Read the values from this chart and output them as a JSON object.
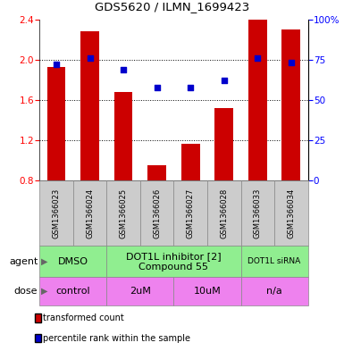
{
  "title": "GDS5620 / ILMN_1699423",
  "samples": [
    "GSM1366023",
    "GSM1366024",
    "GSM1366025",
    "GSM1366026",
    "GSM1366027",
    "GSM1366028",
    "GSM1366033",
    "GSM1366034"
  ],
  "bar_values": [
    1.93,
    2.28,
    1.68,
    0.95,
    1.17,
    1.52,
    2.4,
    2.3
  ],
  "dot_values": [
    72,
    76,
    69,
    58,
    58,
    62,
    76,
    73
  ],
  "ylim_left": [
    0.8,
    2.4
  ],
  "ylim_right": [
    0,
    100
  ],
  "yticks_left": [
    0.8,
    1.2,
    1.6,
    2.0,
    2.4
  ],
  "yticks_right": [
    0,
    25,
    50,
    75,
    100
  ],
  "bar_color": "#cc0000",
  "dot_color": "#0000cc",
  "agent_groups": [
    {
      "label": "DMSO",
      "start": 0,
      "end": 2,
      "color": "#90ee90",
      "fontsize": 8
    },
    {
      "label": "DOT1L inhibitor [2]\nCompound 55",
      "start": 2,
      "end": 6,
      "color": "#90ee90",
      "fontsize": 8
    },
    {
      "label": "DOT1L siRNA",
      "start": 6,
      "end": 8,
      "color": "#90ee90",
      "fontsize": 6.5
    }
  ],
  "dose_groups": [
    {
      "label": "control",
      "start": 0,
      "end": 2,
      "color": "#ee82ee",
      "fontsize": 8
    },
    {
      "label": "2uM",
      "start": 2,
      "end": 4,
      "color": "#ee82ee",
      "fontsize": 8
    },
    {
      "label": "10uM",
      "start": 4,
      "end": 6,
      "color": "#ee82ee",
      "fontsize": 8
    },
    {
      "label": "n/a",
      "start": 6,
      "end": 8,
      "color": "#ee82ee",
      "fontsize": 8
    }
  ],
  "legend_bar_label": "transformed count",
  "legend_dot_label": "percentile rank within the sample",
  "agent_label": "agent",
  "dose_label": "dose",
  "sample_box_color": "#cccccc",
  "bar_width": 0.55
}
